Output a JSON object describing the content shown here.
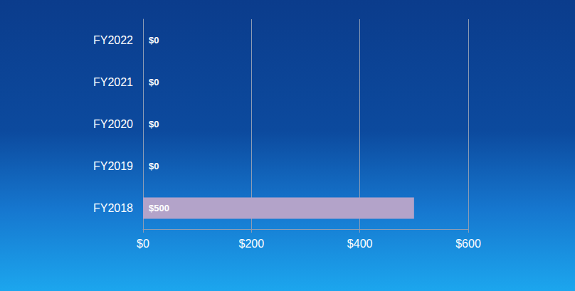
{
  "chart_data": {
    "type": "bar",
    "orientation": "horizontal",
    "categories": [
      "FY2018",
      "FY2019",
      "FY2020",
      "FY2021",
      "FY2022"
    ],
    "values": [
      500,
      0,
      0,
      0,
      0
    ],
    "value_labels": [
      "$500",
      "$0",
      "$0",
      "$0",
      "$0"
    ],
    "data_labels": true,
    "color": "#b3a3c9",
    "xlim": [
      0,
      600
    ],
    "xticks": [
      {
        "value": 0,
        "label": "$0"
      },
      {
        "value": 200,
        "label": "$200"
      },
      {
        "value": 400,
        "label": "$400"
      },
      {
        "value": 600,
        "label": "$600"
      }
    ],
    "grid": true
  }
}
